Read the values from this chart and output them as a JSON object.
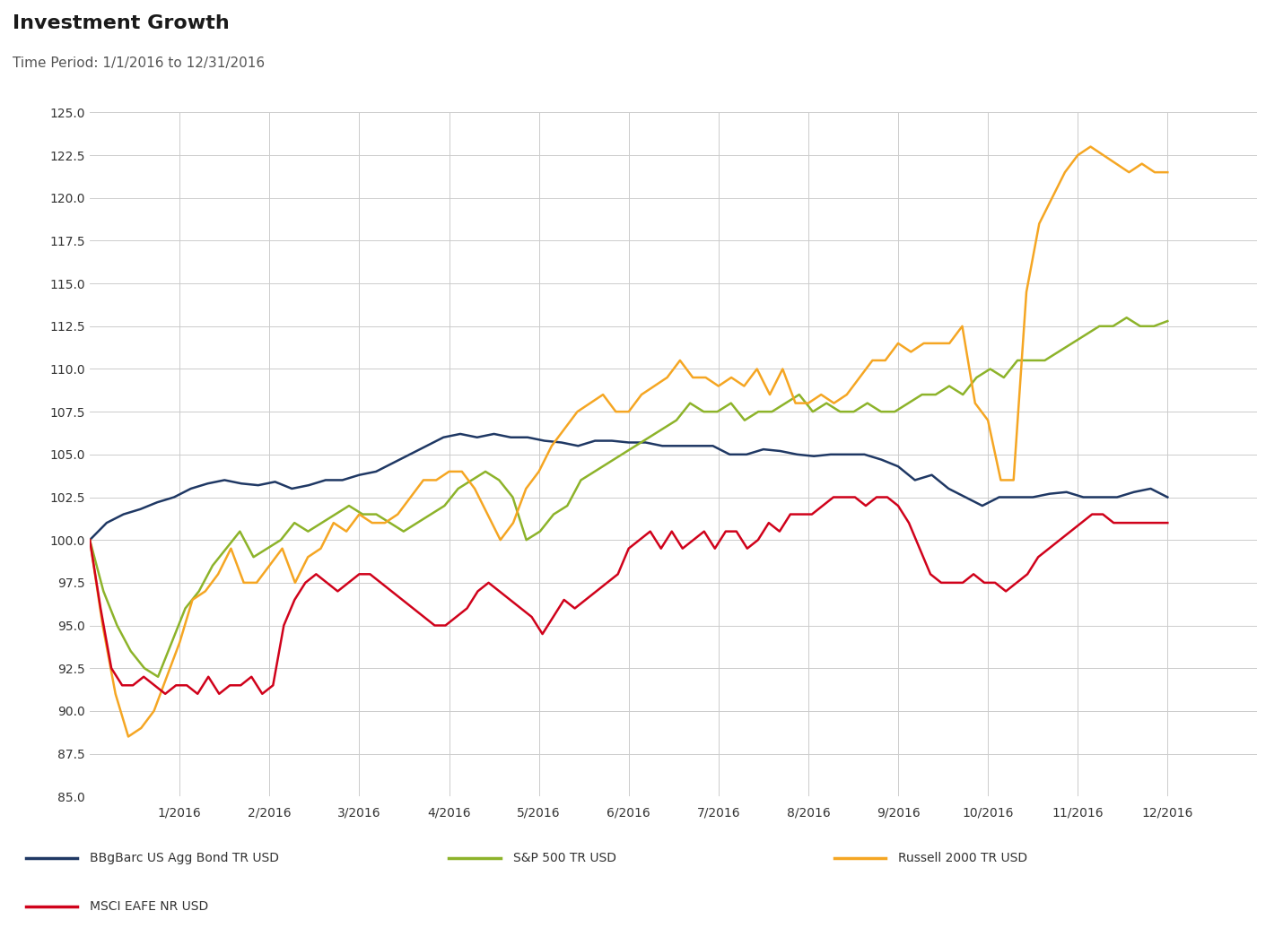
{
  "title": "Investment Growth",
  "subtitle": "Time Period: 1/1/2016 to 12/31/2016",
  "title_color": "#1a1a1a",
  "subtitle_color": "#555555",
  "background_color": "#ffffff",
  "grid_color": "#cccccc",
  "ylim": [
    85.0,
    125.0
  ],
  "yticks": [
    85.0,
    87.5,
    90.0,
    92.5,
    95.0,
    97.5,
    100.0,
    102.5,
    105.0,
    107.5,
    110.0,
    112.5,
    115.0,
    117.5,
    120.0,
    122.5,
    125.0
  ],
  "xtick_labels": [
    "1/2016",
    "2/2016",
    "3/2016",
    "4/2016",
    "5/2016",
    "6/2016",
    "7/2016",
    "8/2016",
    "9/2016",
    "10/2016",
    "11/2016",
    "12/2016"
  ],
  "series": {
    "BBgBarc US Agg Bond TR USD": {
      "color": "#1f3864",
      "linewidth": 1.8,
      "values": [
        100.0,
        101.0,
        101.5,
        101.8,
        102.2,
        102.5,
        103.0,
        103.3,
        103.5,
        103.3,
        103.2,
        103.4,
        103.0,
        103.2,
        103.5,
        103.5,
        103.8,
        104.0,
        104.5,
        105.0,
        105.5,
        106.0,
        106.2,
        106.0,
        106.2,
        106.0,
        106.0,
        105.8,
        105.7,
        105.5,
        105.8,
        105.8,
        105.7,
        105.7,
        105.5,
        105.5,
        105.5,
        105.5,
        105.0,
        105.0,
        105.3,
        105.2,
        105.0,
        104.9,
        105.0,
        105.0,
        105.0,
        104.7,
        104.3,
        103.5,
        103.8,
        103.0,
        102.5,
        102.0,
        102.5,
        102.5,
        102.5,
        102.7,
        102.8,
        102.5,
        102.5,
        102.5,
        102.8,
        103.0,
        102.5
      ]
    },
    "S&P 500 TR USD": {
      "color": "#8db32a",
      "linewidth": 1.8,
      "values": [
        100.0,
        97.0,
        95.0,
        93.5,
        92.5,
        92.0,
        94.0,
        96.0,
        97.0,
        98.5,
        99.5,
        100.5,
        99.0,
        99.5,
        100.0,
        101.0,
        100.5,
        101.0,
        101.5,
        102.0,
        101.5,
        101.5,
        101.0,
        100.5,
        101.0,
        101.5,
        102.0,
        103.0,
        103.5,
        104.0,
        103.5,
        102.5,
        100.0,
        100.5,
        101.5,
        102.0,
        103.5,
        104.0,
        104.5,
        105.0,
        105.5,
        106.0,
        106.5,
        107.0,
        108.0,
        107.5,
        107.5,
        108.0,
        107.0,
        107.5,
        107.5,
        108.0,
        108.5,
        107.5,
        108.0,
        107.5,
        107.5,
        108.0,
        107.5,
        107.5,
        108.0,
        108.5,
        108.5,
        109.0,
        108.5,
        109.5,
        110.0,
        109.5,
        110.5,
        110.5,
        110.5,
        111.0,
        111.5,
        112.0,
        112.5,
        112.5,
        113.0,
        112.5,
        112.5,
        112.8
      ]
    },
    "Russell 2000 TR USD": {
      "color": "#f5a623",
      "linewidth": 1.8,
      "values": [
        100.0,
        95.0,
        91.0,
        88.5,
        89.0,
        90.0,
        92.0,
        94.0,
        96.5,
        97.0,
        98.0,
        99.5,
        97.5,
        97.5,
        98.5,
        99.5,
        97.5,
        99.0,
        99.5,
        101.0,
        100.5,
        101.5,
        101.0,
        101.0,
        101.5,
        102.5,
        103.5,
        103.5,
        104.0,
        104.0,
        103.0,
        101.5,
        100.0,
        101.0,
        103.0,
        104.0,
        105.5,
        106.5,
        107.5,
        108.0,
        108.5,
        107.5,
        107.5,
        108.5,
        109.0,
        109.5,
        110.5,
        109.5,
        109.5,
        109.0,
        109.5,
        109.0,
        110.0,
        108.5,
        110.0,
        108.0,
        108.0,
        108.5,
        108.0,
        108.5,
        109.5,
        110.5,
        110.5,
        111.5,
        111.0,
        111.5,
        111.5,
        111.5,
        112.5,
        108.0,
        107.0,
        103.5,
        103.5,
        114.5,
        118.5,
        120.0,
        121.5,
        122.5,
        123.0,
        122.5,
        122.0,
        121.5,
        122.0,
        121.5,
        121.5
      ]
    },
    "MSCI EAFE NR USD": {
      "color": "#d0021b",
      "linewidth": 1.8,
      "values": [
        100.0,
        96.0,
        92.5,
        91.5,
        91.5,
        92.0,
        91.5,
        91.0,
        91.5,
        91.5,
        91.0,
        92.0,
        91.0,
        91.5,
        91.5,
        92.0,
        91.0,
        91.5,
        95.0,
        96.5,
        97.5,
        98.0,
        97.5,
        97.0,
        97.5,
        98.0,
        98.0,
        97.5,
        97.0,
        96.5,
        96.0,
        95.5,
        95.0,
        95.0,
        95.5,
        96.0,
        97.0,
        97.5,
        97.0,
        96.5,
        96.0,
        95.5,
        94.5,
        95.5,
        96.5,
        96.0,
        96.5,
        97.0,
        97.5,
        98.0,
        99.5,
        100.0,
        100.5,
        99.5,
        100.5,
        99.5,
        100.0,
        100.5,
        99.5,
        100.5,
        100.5,
        99.5,
        100.0,
        101.0,
        100.5,
        101.5,
        101.5,
        101.5,
        102.0,
        102.5,
        102.5,
        102.5,
        102.0,
        102.5,
        102.5,
        102.0,
        101.0,
        99.5,
        98.0,
        97.5,
        97.5,
        97.5,
        98.0,
        97.5,
        97.5,
        97.0,
        97.5,
        98.0,
        99.0,
        99.5,
        100.0,
        100.5,
        101.0,
        101.5,
        101.5,
        101.0,
        101.0,
        101.0,
        101.0,
        101.0,
        101.0
      ]
    }
  },
  "legend": [
    {
      "label": "BBgBarc US Agg Bond TR USD",
      "color": "#1f3864"
    },
    {
      "label": "S&P 500 TR USD",
      "color": "#8db32a"
    },
    {
      "label": "Russell 2000 TR USD",
      "color": "#f5a623"
    },
    {
      "label": "MSCI EAFE NR USD",
      "color": "#d0021b"
    }
  ]
}
